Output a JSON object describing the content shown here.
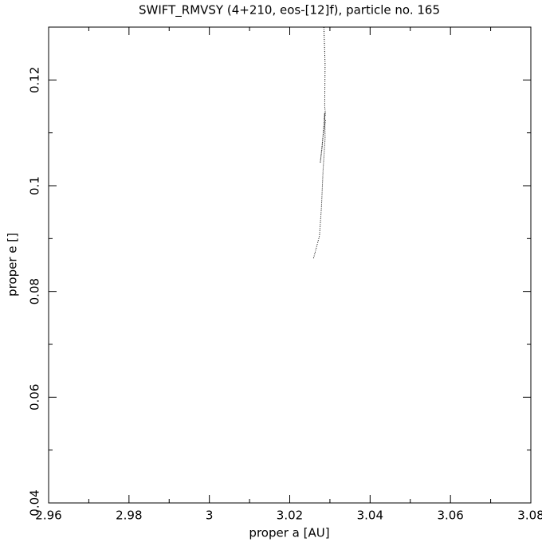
{
  "chart_data": {
    "type": "line",
    "title": "SWIFT_RMVSY (4+210, eos-[12]f), particle no. 165",
    "x_label": "proper a [AU]",
    "y_label": "proper e []",
    "x": [
      3.0285,
      3.0288,
      3.0287,
      3.0289,
      3.0286,
      3.0289,
      3.0283,
      3.0276,
      3.0281,
      3.0287,
      3.0288,
      3.0283,
      3.0279,
      3.0274,
      3.0266,
      3.0259
    ],
    "series": [
      {
        "color": "#000000",
        "values": [
          0.13,
          0.123,
          0.115,
          0.1135,
          0.1128,
          0.1123,
          0.1095,
          0.1043,
          0.1075,
          0.1138,
          0.109,
          0.103,
          0.096,
          0.0905,
          0.0882,
          0.0862
        ]
      }
    ],
    "xlim": [
      2.96,
      3.08
    ],
    "xticks": [
      2.96,
      2.98,
      3,
      3.02,
      3.04,
      3.06,
      3.08
    ],
    "xminorticks": [
      2.97,
      2.99,
      3.01,
      3.03,
      3.05,
      3.07
    ],
    "ylim": [
      0.04,
      0.13
    ],
    "yticks": [
      0.04,
      0.06,
      0.08,
      0.1,
      0.12
    ],
    "yminorticks": [
      0.05,
      0.07,
      0.09,
      0.11,
      0.13
    ],
    "grid": false,
    "line_style": "dotted"
  }
}
